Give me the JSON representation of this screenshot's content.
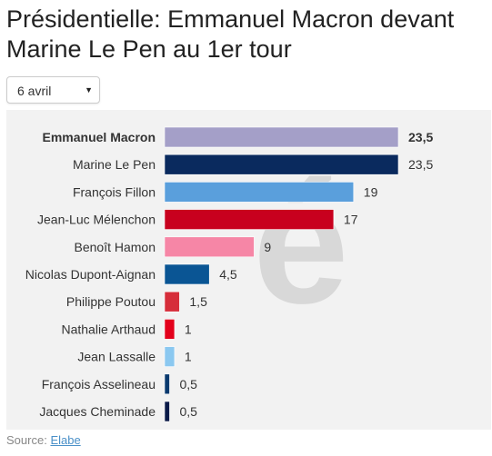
{
  "title": "Présidentielle: Emmanuel Macron devant Marine Le Pen au 1er tour",
  "date_select": {
    "value": "6 avril",
    "arrow": "▼"
  },
  "source": {
    "label": "Source:",
    "link_text": "Elabe"
  },
  "colors": {
    "panel_background": "#f2f2f2",
    "watermark": "#d8d8d8",
    "link": "#4a90c8"
  },
  "chart_data": {
    "type": "bar",
    "orientation": "horizontal",
    "categories": [
      "Emmanuel Macron",
      "Marine Le Pen",
      "François Fillon",
      "Jean-Luc Mélenchon",
      "Benoît Hamon",
      "Nicolas Dupont-Aignan",
      "Philippe Poutou",
      "Nathalie Arthaud",
      "Jean Lassalle",
      "François Asselineau",
      "Jacques Cheminade"
    ],
    "values": [
      23.5,
      23.5,
      19,
      17,
      9,
      4.5,
      1.5,
      1,
      1,
      0.5,
      0.5
    ],
    "value_labels": [
      "23,5",
      "23,5",
      "19",
      "17",
      "9",
      "4,5",
      "1,5",
      "1",
      "1",
      "0,5",
      "0,5"
    ],
    "colors": [
      "#a49fc8",
      "#0a2a5e",
      "#5a9fdc",
      "#c8001e",
      "#f686a6",
      "#0a5594",
      "#d62d3a",
      "#e3001b",
      "#8bc8f0",
      "#0a3a6e",
      "#0a1a48"
    ],
    "highlighted_index": 0,
    "xlim": [
      0,
      23.5
    ]
  }
}
